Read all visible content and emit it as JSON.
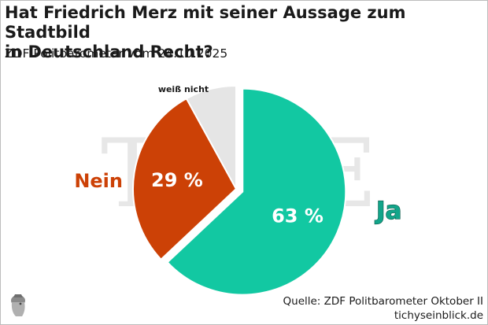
{
  "header": {
    "title_line1": "Hat Friedrich Merz mit seiner Aussage zum Stadtbild",
    "title_line2": "in Deutschland Recht?",
    "subtitle": "ZDF Politbarometer vom 24.10.2025"
  },
  "footer": {
    "source": "Quelle: ZDF Politbarometer Oktober II",
    "site": "tichyseinblick.de"
  },
  "chart_data": {
    "type": "pie",
    "title": "Hat Friedrich Merz mit seiner Aussage zum Stadtbild in Deutschland Recht?",
    "subtitle": "ZDF Politbarometer vom 24.10.2025",
    "slices": [
      {
        "label": "Ja",
        "value": 63,
        "value_label": "63 %",
        "color": "#12c8a2",
        "label_color": "#12a58a",
        "exploded": true
      },
      {
        "label": "Nein",
        "value": 29,
        "value_label": "29 %",
        "color": "#cc4106",
        "label_color": "#cc4106",
        "exploded": false
      },
      {
        "label": "weiß nicht",
        "value": 8,
        "value_label": "",
        "color": "#e5e5e5",
        "label_color": "#1a1a1a",
        "exploded": false
      }
    ],
    "start_angle_deg": 0,
    "direction": "clockwise",
    "legend": "none"
  }
}
